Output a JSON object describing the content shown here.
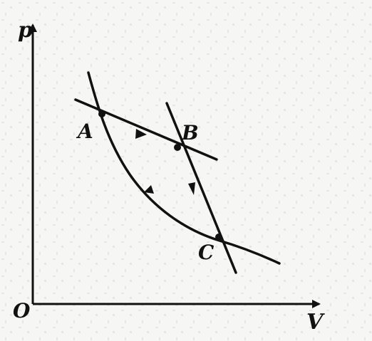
{
  "labels": {
    "p_axis": "p",
    "v_axis": "V",
    "origin": "O",
    "point_a": "A",
    "point_b": "B",
    "point_c": "C"
  },
  "colors": {
    "ink": "#111111",
    "paper": "#f6f6f4"
  }
}
